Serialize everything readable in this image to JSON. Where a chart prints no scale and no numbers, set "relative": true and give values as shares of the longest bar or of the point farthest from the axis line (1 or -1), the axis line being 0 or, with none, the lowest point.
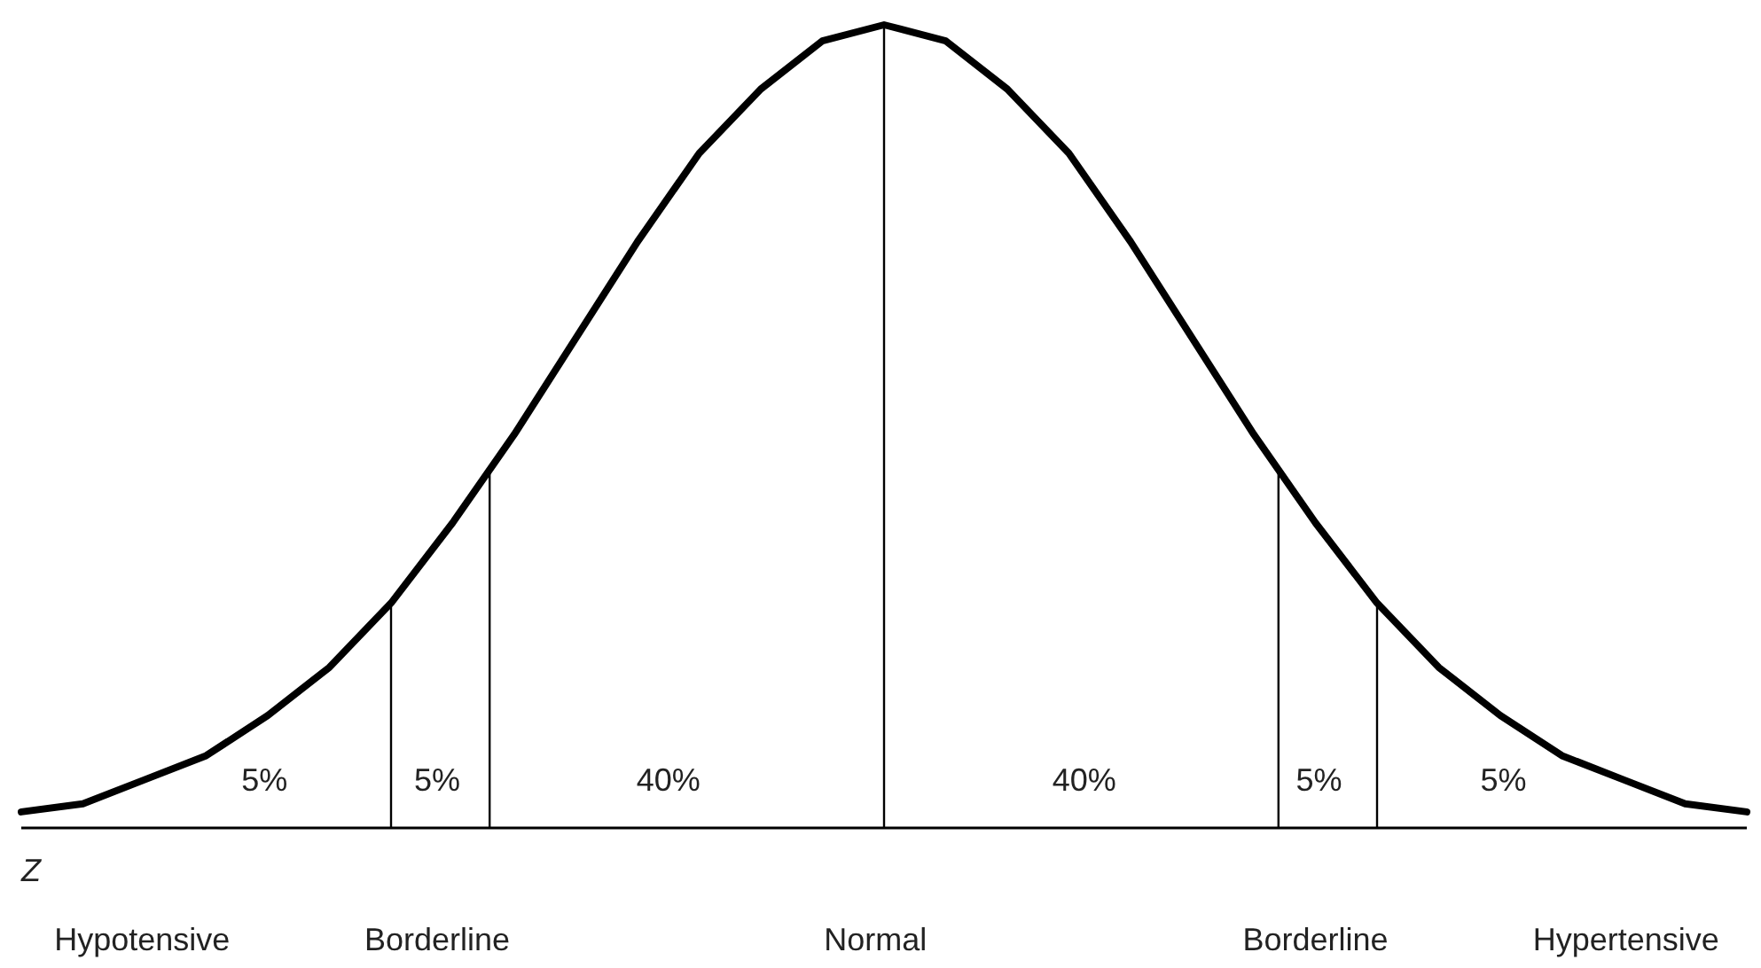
{
  "chart_data": {
    "type": "line",
    "relative": true,
    "xlabel": "Z",
    "categories": [
      null,
      null,
      null,
      null,
      null,
      null,
      null,
      null,
      null,
      null,
      null,
      null,
      null,
      null,
      null,
      null,
      null,
      null,
      null,
      null,
      null,
      null,
      null,
      null,
      null,
      null,
      null,
      null,
      null
    ],
    "marker": "none",
    "line_style": "solid",
    "series": [
      {
        "color": "#000000",
        "values": [
          0.02,
          0.03,
          0.06,
          0.09,
          0.14,
          0.2,
          0.28,
          0.38,
          0.49,
          0.61,
          0.73,
          0.84,
          0.92,
          0.98,
          1,
          0.98,
          0.92,
          0.84,
          0.73,
          0.61,
          0.49,
          0.38,
          0.28,
          0.2,
          0.14,
          0.09,
          0.06,
          0.03,
          0.02
        ]
      }
    ],
    "annotations": [
      "5%",
      "5%",
      "40%",
      "40%",
      "5%",
      "5%",
      "Hypotensive",
      "Borderline",
      "Normal",
      "Borderline",
      "Hypertensive"
    ]
  }
}
